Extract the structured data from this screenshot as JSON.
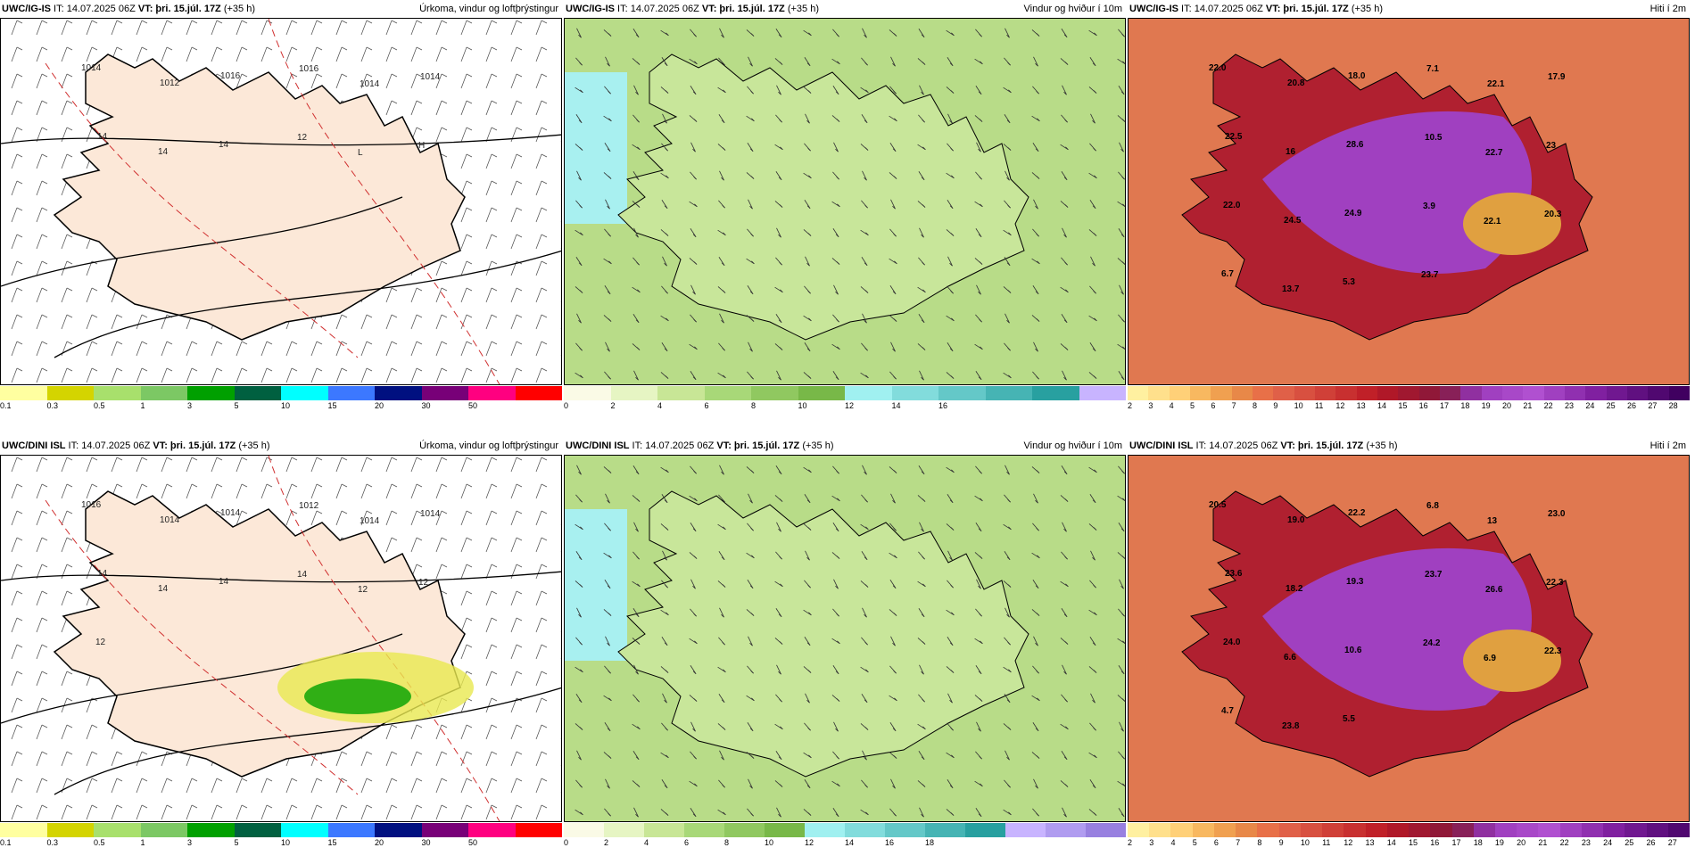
{
  "panels": [
    {
      "id": "p1",
      "model": "UWC/IG-IS",
      "it": "IT: 14.07.2025 06Z",
      "vt_label": "VT:",
      "vt": "þri. 15.júl. 17Z",
      "lead": "(+35 h)",
      "title": "Úrkoma, vindur og loftþrýstingur",
      "type": "precip",
      "cbar": {
        "colors": [
          "#ffffa0",
          "#d4d400",
          "#a8e06c",
          "#7cc864",
          "#00a000",
          "#006040",
          "#00ffff",
          "#3c78ff",
          "#001080",
          "#780078",
          "#ff0080",
          "#ff0000"
        ],
        "ticks": [
          "0.1",
          "0.3",
          "0.5",
          "1",
          "3",
          "5",
          "10",
          "15",
          "20",
          "30",
          "50"
        ]
      },
      "labels": [
        "1014",
        "1012",
        "1016",
        "1016",
        "1014",
        "1014",
        "14",
        "14",
        "14",
        "12",
        "L",
        "H"
      ]
    },
    {
      "id": "p2",
      "model": "UWC/IG-IS",
      "it": "IT: 14.07.2025 06Z",
      "vt_label": "VT:",
      "vt": "þri. 15.júl. 17Z",
      "lead": "(+35 h)",
      "title": "Vindur og hviður í 10m",
      "type": "wind",
      "cbar": {
        "colors": [
          "#fafae6",
          "#e6f5c3",
          "#c8e696",
          "#a8d878",
          "#90c860",
          "#78b848",
          "#a0f0f0",
          "#82dcdc",
          "#64c8c8",
          "#46b4b4",
          "#28a0a0",
          "#c8b4ff"
        ],
        "ticks": [
          "0",
          "2",
          "4",
          "6",
          "8",
          "10",
          "12",
          "14",
          "16"
        ]
      }
    },
    {
      "id": "p3",
      "model": "UWC/IG-IS",
      "it": "IT: 14.07.2025 06Z",
      "vt_label": "VT:",
      "vt": "þri. 15.júl. 17Z",
      "lead": "(+35 h)",
      "title": "Hiti í 2m",
      "type": "temp",
      "cbar": {
        "colors": [
          "#fff0a0",
          "#ffe08c",
          "#ffd078",
          "#f8b860",
          "#f0a050",
          "#e88848",
          "#e87048",
          "#e06048",
          "#d85040",
          "#d04038",
          "#c83030",
          "#c02028",
          "#b01828",
          "#a01830",
          "#901838",
          "#882058",
          "#9030a0",
          "#a040c0",
          "#a848c8",
          "#b050d0",
          "#a040c0",
          "#9030b0",
          "#8020a0",
          "#701890",
          "#601080",
          "#500870",
          "#400060"
        ],
        "ticks": [
          "2",
          "3",
          "4",
          "5",
          "6",
          "7",
          "8",
          "9",
          "10",
          "11",
          "12",
          "13",
          "14",
          "15",
          "16",
          "17",
          "18",
          "19",
          "20",
          "21",
          "22",
          "23",
          "24",
          "25",
          "26",
          "27",
          "28"
        ]
      },
      "labels": [
        "22.0",
        "20.8",
        "18.0",
        "7.1",
        "22.1",
        "17.9",
        "22.5",
        "16",
        "28.6",
        "10.5",
        "22.7",
        "23",
        "22.0",
        "24.5",
        "24.9",
        "3.9",
        "22.1",
        "20.3",
        "6.7",
        "13.7",
        "5.3",
        "23.7"
      ]
    },
    {
      "id": "p4",
      "model": "UWC/DINI ISL",
      "it": "IT: 14.07.2025 06Z",
      "vt_label": "VT:",
      "vt": "þri. 15.júl. 17Z",
      "lead": "(+35 h)",
      "title": "Úrkoma, vindur og loftþrýstingur",
      "type": "precip",
      "cbar": {
        "colors": [
          "#ffffa0",
          "#d4d400",
          "#a8e06c",
          "#7cc864",
          "#00a000",
          "#006040",
          "#00ffff",
          "#3c78ff",
          "#001080",
          "#780078",
          "#ff0080",
          "#ff0000"
        ],
        "ticks": [
          "0.1",
          "0.3",
          "0.5",
          "1",
          "3",
          "5",
          "10",
          "15",
          "20",
          "30",
          "50"
        ]
      },
      "labels": [
        "1016",
        "1014",
        "1014",
        "1012",
        "1014",
        "1014",
        "14",
        "14",
        "14",
        "14",
        "12",
        "12",
        "12"
      ]
    },
    {
      "id": "p5",
      "model": "UWC/DINI ISL",
      "it": "IT: 14.07.2025 06Z",
      "vt_label": "VT:",
      "vt": "þri. 15.júl. 17Z",
      "lead": "(+35 h)",
      "title": "Vindur og hviður í 10m",
      "type": "wind",
      "cbar": {
        "colors": [
          "#fafae6",
          "#e6f5c3",
          "#c8e696",
          "#a8d878",
          "#90c860",
          "#78b848",
          "#a0f0f0",
          "#82dcdc",
          "#64c8c8",
          "#46b4b4",
          "#28a0a0",
          "#c8b4ff",
          "#b09cf0",
          "#9880e0"
        ],
        "ticks": [
          "0",
          "2",
          "4",
          "6",
          "8",
          "10",
          "12",
          "14",
          "16",
          "18"
        ]
      }
    },
    {
      "id": "p6",
      "model": "UWC/DINI ISL",
      "it": "IT: 14.07.2025 06Z",
      "vt_label": "VT:",
      "vt": "þri. 15.júl. 17Z",
      "lead": "(+35 h)",
      "title": "Hiti í 2m",
      "type": "temp",
      "cbar": {
        "colors": [
          "#fff0a0",
          "#ffe08c",
          "#ffd078",
          "#f8b860",
          "#f0a050",
          "#e88848",
          "#e87048",
          "#e06048",
          "#d85040",
          "#d04038",
          "#c83030",
          "#c02028",
          "#b01828",
          "#a01830",
          "#901838",
          "#882058",
          "#9030a0",
          "#a040c0",
          "#a848c8",
          "#b050d0",
          "#a040c0",
          "#9030b0",
          "#8020a0",
          "#701890",
          "#601080",
          "#500870"
        ],
        "ticks": [
          "2",
          "3",
          "4",
          "5",
          "6",
          "7",
          "8",
          "9",
          "10",
          "11",
          "12",
          "13",
          "14",
          "15",
          "16",
          "17",
          "18",
          "19",
          "20",
          "21",
          "22",
          "23",
          "24",
          "25",
          "26",
          "27"
        ]
      },
      "labels": [
        "20.5",
        "19.0",
        "22.2",
        "6.8",
        "13",
        "23.0",
        "23.6",
        "18.2",
        "19.3",
        "23.7",
        "26.6",
        "22.3",
        "24.0",
        "6.6",
        "10.6",
        "24.2",
        "6.9",
        "22.3",
        "4.7",
        "23.8",
        "5.5"
      ]
    }
  ]
}
